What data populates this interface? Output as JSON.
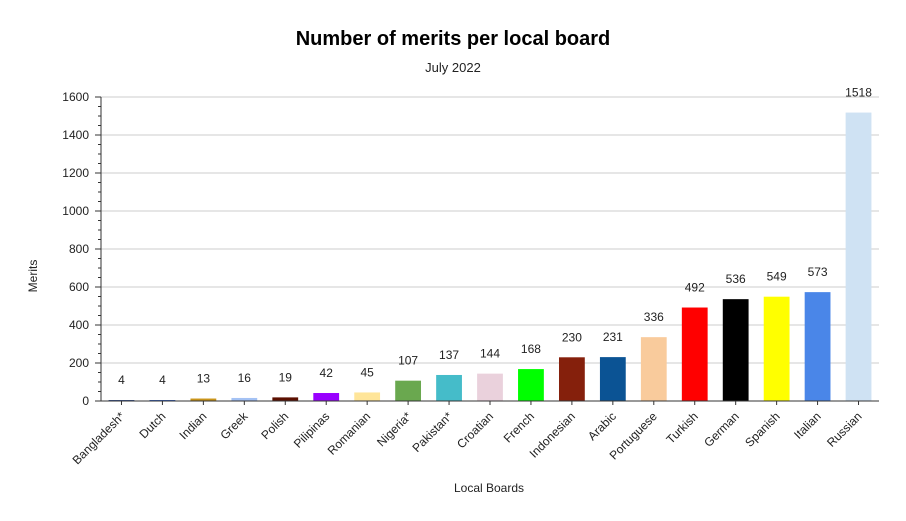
{
  "chart_data": {
    "type": "bar",
    "title": "Number of merits per local board",
    "subtitle": "July 2022",
    "xlabel": "Local Boards",
    "ylabel": "Merits",
    "ylim": [
      0,
      1600
    ],
    "yticks": [
      0,
      200,
      400,
      600,
      800,
      1000,
      1200,
      1400,
      1600
    ],
    "grid": true,
    "legend": "none",
    "categories": [
      "Bangladesh*",
      "Dutch",
      "Indian",
      "Greek",
      "Polish",
      "Pilipinas",
      "Romanian",
      "Nigeria*",
      "Pakistan*",
      "Croatian",
      "French",
      "Indonesian",
      "Arabic",
      "Portuguese",
      "Turkish",
      "German",
      "Spanish",
      "Italian",
      "Russian"
    ],
    "values": [
      4,
      4,
      13,
      16,
      19,
      42,
      45,
      107,
      137,
      144,
      168,
      230,
      231,
      336,
      492,
      536,
      549,
      573,
      1518
    ],
    "colors": [
      "#3c5a9a",
      "#3a66c4",
      "#c9941a",
      "#a4c2f4",
      "#5b0f00",
      "#9900ff",
      "#ffe599",
      "#6aa84f",
      "#45bcc9",
      "#ead1dc",
      "#00ff00",
      "#85200c",
      "#0b5394",
      "#f9cb9c",
      "#ff0000",
      "#000000",
      "#ffff00",
      "#4a86e8",
      "#cfe2f3"
    ]
  }
}
